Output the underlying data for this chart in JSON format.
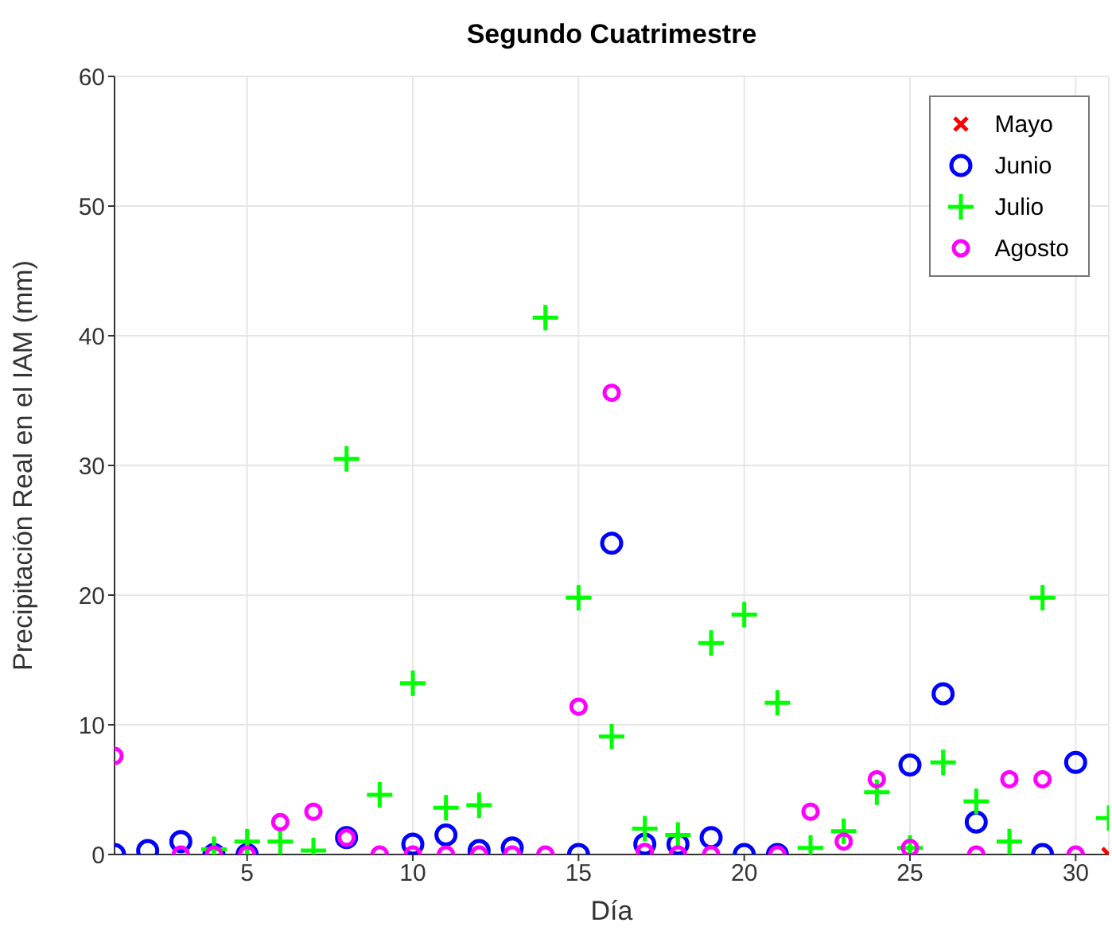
{
  "chart_data": {
    "type": "scatter",
    "title": "Segundo Cuatrimestre",
    "xlabel": "Día",
    "ylabel": "Precipitación Real en el IAM (mm)",
    "x": [
      1,
      2,
      3,
      4,
      5,
      6,
      7,
      8,
      9,
      10,
      11,
      12,
      13,
      14,
      15,
      16,
      17,
      18,
      19,
      20,
      21,
      22,
      23,
      24,
      25,
      26,
      27,
      28,
      29,
      30,
      31
    ],
    "series": [
      {
        "name": "Mayo",
        "color": "#ff0000",
        "marker": "cross",
        "values": [
          null,
          null,
          null,
          null,
          null,
          null,
          null,
          null,
          null,
          null,
          null,
          null,
          null,
          null,
          null,
          null,
          null,
          null,
          null,
          null,
          null,
          null,
          null,
          null,
          null,
          null,
          null,
          null,
          null,
          null,
          0
        ]
      },
      {
        "name": "Junio",
        "color": "#0000ff",
        "marker": "circle",
        "values": [
          0,
          0.3,
          1.0,
          0,
          0,
          null,
          null,
          1.3,
          null,
          0.8,
          1.5,
          0.3,
          0.5,
          null,
          0,
          24,
          0.8,
          0.8,
          1.3,
          0,
          0,
          null,
          null,
          null,
          6.9,
          12.4,
          2.5,
          null,
          0,
          7.1,
          null
        ]
      },
      {
        "name": "Julio",
        "color": "#00ff00",
        "marker": "cross",
        "values": [
          null,
          null,
          null,
          0.4,
          1.0,
          1.0,
          0.3,
          30.5,
          4.6,
          13.2,
          3.6,
          3.8,
          null,
          41.4,
          19.8,
          9.1,
          2.0,
          1.5,
          16.3,
          18.5,
          11.7,
          0.5,
          1.8,
          4.8,
          0.5,
          7.1,
          4.1,
          1.0,
          19.8,
          null,
          2.8
        ]
      },
      {
        "name": "Agosto",
        "color": "#ff00ff",
        "marker": "circle",
        "values": [
          7.6,
          null,
          0,
          0,
          0,
          2.5,
          3.3,
          1.3,
          0,
          0,
          0,
          0,
          0,
          0,
          11.4,
          35.6,
          0.2,
          0,
          0,
          null,
          0,
          3.3,
          1.0,
          5.8,
          0.5,
          null,
          0,
          5.8,
          5.8,
          0,
          null
        ]
      }
    ],
    "xlim": [
      1,
      31
    ],
    "xticks": [
      5,
      10,
      15,
      20,
      25,
      30
    ],
    "ylim": [
      0,
      60
    ],
    "yticks": [
      0,
      10,
      20,
      30,
      40,
      50,
      60
    ],
    "grid": true,
    "legend": "top right"
  }
}
